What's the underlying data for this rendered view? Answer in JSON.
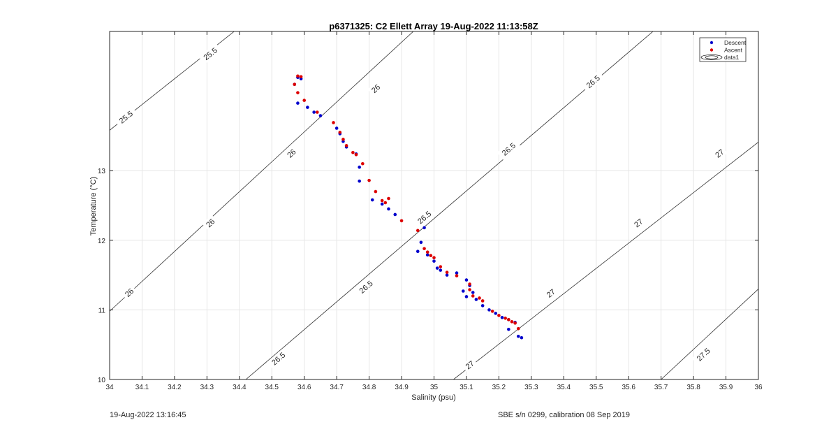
{
  "chart_data": {
    "type": "scatter",
    "title": "p6371325: C2 Ellett Array 19-Aug-2022 11:13:58Z",
    "xlabel": "Salinity (psu)",
    "ylabel": "Temperature (°C)",
    "xlim": [
      34,
      36
    ],
    "ylim": [
      10,
      15
    ],
    "xticks": [
      34,
      34.1,
      34.2,
      34.3,
      34.4,
      34.5,
      34.6,
      34.7,
      34.8,
      34.9,
      35,
      35.1,
      35.2,
      35.3,
      35.4,
      35.5,
      35.6,
      35.7,
      35.8,
      35.9,
      36
    ],
    "xtick_labels": [
      "34",
      "34.1",
      "34.2",
      "34.3",
      "34.4",
      "34.5",
      "34.6",
      "34.7",
      "34.8",
      "34.9",
      "35",
      "35.1",
      "35.2",
      "35.3",
      "35.4",
      "35.5",
      "35.6",
      "35.7",
      "35.8",
      "35.9",
      "36"
    ],
    "yticks": [
      10,
      11,
      12,
      13
    ],
    "ytick_labels": [
      "10",
      "11",
      "12",
      "13"
    ],
    "grid": true,
    "legend": {
      "position": "top-right",
      "entries": [
        {
          "label": "Descent",
          "color": "#0000cc",
          "marker": "dot"
        },
        {
          "label": "Ascent",
          "color": "#dd0000",
          "marker": "dot"
        },
        {
          "label": "data1",
          "color": "#000000",
          "marker": "contour"
        }
      ]
    },
    "contours": [
      {
        "level": "25.5",
        "points": [
          [
            34,
            13.58
          ],
          [
            34.4,
            15.06
          ]
        ],
        "labels": [
          {
            "text": "25.5",
            "s": 34.05,
            "t": 13.77
          },
          {
            "text": "25.5",
            "s": 34.31,
            "t": 14.68
          }
        ]
      },
      {
        "level": "26",
        "points": [
          [
            34,
            10.98
          ],
          [
            34.95,
            15.06
          ]
        ],
        "labels": [
          {
            "text": "26",
            "s": 34.06,
            "t": 11.25
          },
          {
            "text": "26",
            "s": 34.31,
            "t": 12.25
          },
          {
            "text": "26",
            "s": 34.56,
            "t": 13.25
          },
          {
            "text": "26",
            "s": 34.82,
            "t": 14.18
          }
        ]
      },
      {
        "level": "26.5",
        "points": [
          [
            34.42,
            10
          ],
          [
            35.69,
            15.06
          ]
        ],
        "labels": [
          {
            "text": "26.5",
            "s": 34.52,
            "t": 10.3
          },
          {
            "text": "26.5",
            "s": 34.79,
            "t": 11.33
          },
          {
            "text": "26.5",
            "s": 34.97,
            "t": 12.33
          },
          {
            "text": "26.5",
            "s": 35.23,
            "t": 13.31
          },
          {
            "text": "26.5",
            "s": 35.49,
            "t": 14.28
          }
        ]
      },
      {
        "level": "27",
        "points": [
          [
            35.06,
            10
          ],
          [
            36,
            13.41
          ]
        ],
        "labels": [
          {
            "text": "27",
            "s": 35.11,
            "t": 10.21
          },
          {
            "text": "27",
            "s": 35.36,
            "t": 11.24
          },
          {
            "text": "27",
            "s": 35.63,
            "t": 12.25
          },
          {
            "text": "27",
            "s": 35.88,
            "t": 13.25
          }
        ]
      },
      {
        "level": "27.5",
        "points": [
          [
            35.7,
            10
          ],
          [
            36,
            11.3
          ]
        ],
        "labels": [
          {
            "text": "27.5",
            "s": 35.83,
            "t": 10.36
          }
        ]
      }
    ],
    "series": [
      {
        "name": "Descent",
        "color": "#0000cc",
        "points": [
          [
            34.57,
            14.24
          ],
          [
            34.58,
            14.34
          ],
          [
            34.59,
            14.32
          ],
          [
            34.58,
            13.97
          ],
          [
            34.61,
            13.91
          ],
          [
            34.63,
            13.84
          ],
          [
            34.65,
            13.79
          ],
          [
            34.7,
            13.61
          ],
          [
            34.71,
            13.53
          ],
          [
            34.72,
            13.42
          ],
          [
            34.73,
            13.34
          ],
          [
            34.76,
            13.24
          ],
          [
            34.77,
            13.05
          ],
          [
            34.77,
            12.85
          ],
          [
            34.81,
            12.58
          ],
          [
            34.84,
            12.52
          ],
          [
            34.86,
            12.45
          ],
          [
            34.88,
            12.37
          ],
          [
            34.97,
            12.18
          ],
          [
            34.96,
            11.97
          ],
          [
            34.98,
            11.79
          ],
          [
            34.95,
            11.84
          ],
          [
            35.0,
            11.7
          ],
          [
            35.01,
            11.6
          ],
          [
            35.02,
            11.57
          ],
          [
            35.04,
            11.5
          ],
          [
            35.07,
            11.53
          ],
          [
            35.1,
            11.43
          ],
          [
            35.11,
            11.35
          ],
          [
            35.09,
            11.27
          ],
          [
            35.12,
            11.25
          ],
          [
            35.1,
            11.19
          ],
          [
            35.13,
            11.15
          ],
          [
            35.15,
            11.06
          ],
          [
            35.17,
            11.0
          ],
          [
            35.19,
            10.95
          ],
          [
            35.21,
            10.89
          ],
          [
            35.23,
            10.86
          ],
          [
            35.25,
            10.82
          ],
          [
            35.23,
            10.72
          ],
          [
            35.26,
            10.62
          ],
          [
            35.27,
            10.6
          ]
        ]
      },
      {
        "name": "Ascent",
        "color": "#dd0000",
        "points": [
          [
            34.58,
            14.36
          ],
          [
            34.59,
            14.35
          ],
          [
            34.57,
            14.24
          ],
          [
            34.58,
            14.12
          ],
          [
            34.6,
            14.01
          ],
          [
            34.64,
            13.84
          ],
          [
            34.69,
            13.69
          ],
          [
            34.71,
            13.55
          ],
          [
            34.72,
            13.45
          ],
          [
            34.73,
            13.36
          ],
          [
            34.75,
            13.26
          ],
          [
            34.76,
            13.23
          ],
          [
            34.78,
            13.1
          ],
          [
            34.8,
            12.86
          ],
          [
            34.82,
            12.7
          ],
          [
            34.84,
            12.57
          ],
          [
            34.85,
            12.54
          ],
          [
            34.86,
            12.6
          ],
          [
            34.9,
            12.28
          ],
          [
            34.95,
            12.14
          ],
          [
            34.97,
            11.88
          ],
          [
            34.98,
            11.83
          ],
          [
            34.99,
            11.78
          ],
          [
            35.0,
            11.75
          ],
          [
            35.02,
            11.62
          ],
          [
            35.04,
            11.54
          ],
          [
            35.07,
            11.49
          ],
          [
            35.11,
            11.37
          ],
          [
            35.11,
            11.29
          ],
          [
            35.12,
            11.2
          ],
          [
            35.14,
            11.17
          ],
          [
            35.15,
            11.13
          ],
          [
            35.18,
            10.98
          ],
          [
            35.2,
            10.92
          ],
          [
            35.22,
            10.88
          ],
          [
            35.23,
            10.86
          ],
          [
            35.24,
            10.83
          ],
          [
            35.25,
            10.81
          ],
          [
            35.26,
            10.73
          ]
        ]
      }
    ]
  },
  "footer": {
    "timestamp": "19-Aug-2022 13:16:45",
    "calibration": "SBE s/n 0299, calibration 08 Sep 2019"
  }
}
